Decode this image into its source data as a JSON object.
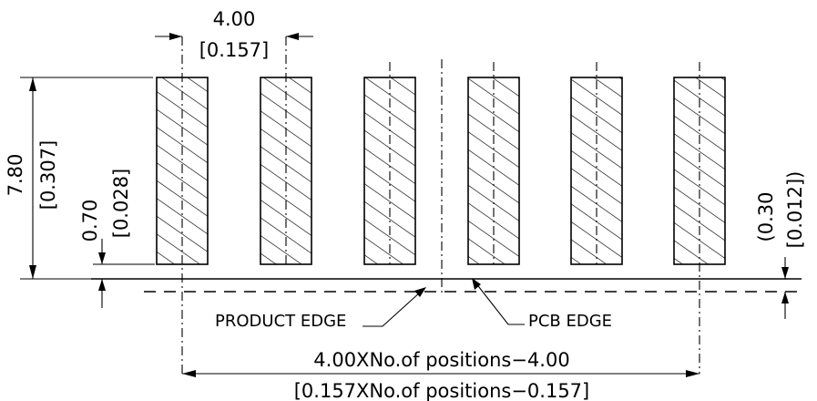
{
  "drawing": {
    "pad_count": 6,
    "dimensions": {
      "pitch": {
        "mm": "4.00",
        "inch": "[0.157]"
      },
      "pad_length": {
        "mm": "7.80",
        "inch": "[0.307]"
      },
      "pad_offset": {
        "mm": "0.70",
        "inch": "[0.028]"
      },
      "edge_gap": {
        "mm": "(0.30",
        "inch": "[0.012])"
      },
      "overall": {
        "mm": "4.00XNo.of  positions−4.00",
        "inch": "[0.157XNo.of  positions−0.157]"
      }
    },
    "labels": {
      "product_edge": "PRODUCT EDGE",
      "pcb_edge": "PCB EDGE"
    }
  }
}
